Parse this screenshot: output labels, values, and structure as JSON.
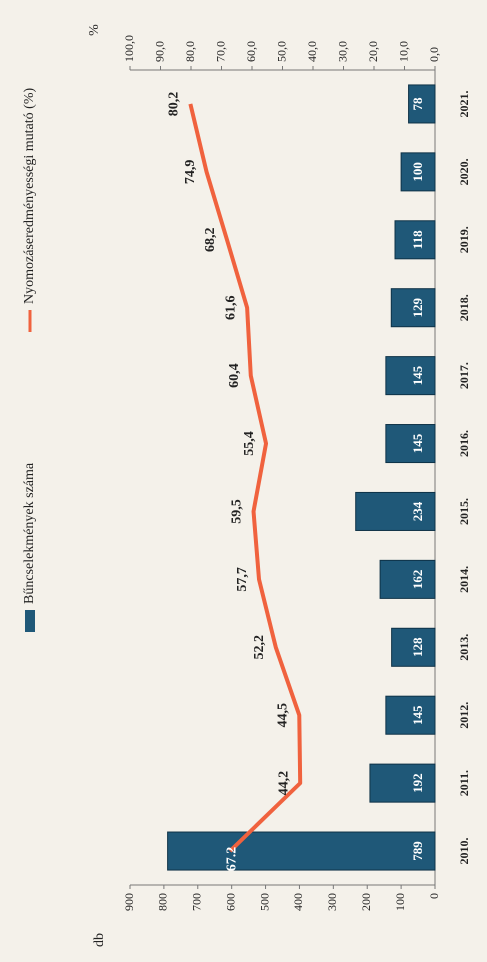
{
  "chart_data": {
    "type": "bar",
    "categories": [
      "2010.",
      "2011.",
      "2012.",
      "2013.",
      "2014.",
      "2015.",
      "2016.",
      "2017.",
      "2018.",
      "2019.",
      "2020.",
      "2021."
    ],
    "series": [
      {
        "name": "Bűncselekmények száma",
        "type": "bar",
        "color": "#1f5878",
        "axis": "y",
        "values": [
          789,
          192,
          145,
          128,
          162,
          234,
          145,
          145,
          129,
          118,
          100,
          78
        ]
      },
      {
        "name": "Nyomozáseredményességi mutató (%)",
        "type": "line",
        "color": "#f0623e",
        "axis": "y2",
        "values": [
          67.2,
          44.2,
          44.5,
          52.2,
          57.7,
          59.5,
          55.4,
          60.4,
          61.6,
          68.2,
          74.9,
          80.2
        ],
        "value_labels": [
          "67.2",
          "44,2",
          "44,5",
          "52,2",
          "57,7",
          "59,5",
          "55,4",
          "60,4",
          "61,6",
          "68,2",
          "74,9",
          "80,2"
        ]
      }
    ],
    "ylabel": "db",
    "y2label": "%",
    "ylim": [
      0,
      900
    ],
    "yticks": [
      0,
      100,
      200,
      300,
      400,
      500,
      600,
      700,
      800,
      900
    ],
    "y2lim": [
      0,
      100
    ],
    "y2ticks": [
      {
        "value": 0,
        "label": "0,0"
      },
      {
        "value": 10,
        "label": "10,0"
      },
      {
        "value": 20,
        "label": "20,0"
      },
      {
        "value": 30,
        "label": "30,0"
      },
      {
        "value": 40,
        "label": "40,0"
      },
      {
        "value": 50,
        "label": "50,0"
      },
      {
        "value": 60,
        "label": "60,0"
      },
      {
        "value": 70,
        "label": "70,0"
      },
      {
        "value": 80,
        "label": "80,0"
      },
      {
        "value": 90,
        "label": "90,0"
      },
      {
        "value": 100,
        "label": "100,0"
      }
    ],
    "grid": false,
    "legend": "top"
  }
}
